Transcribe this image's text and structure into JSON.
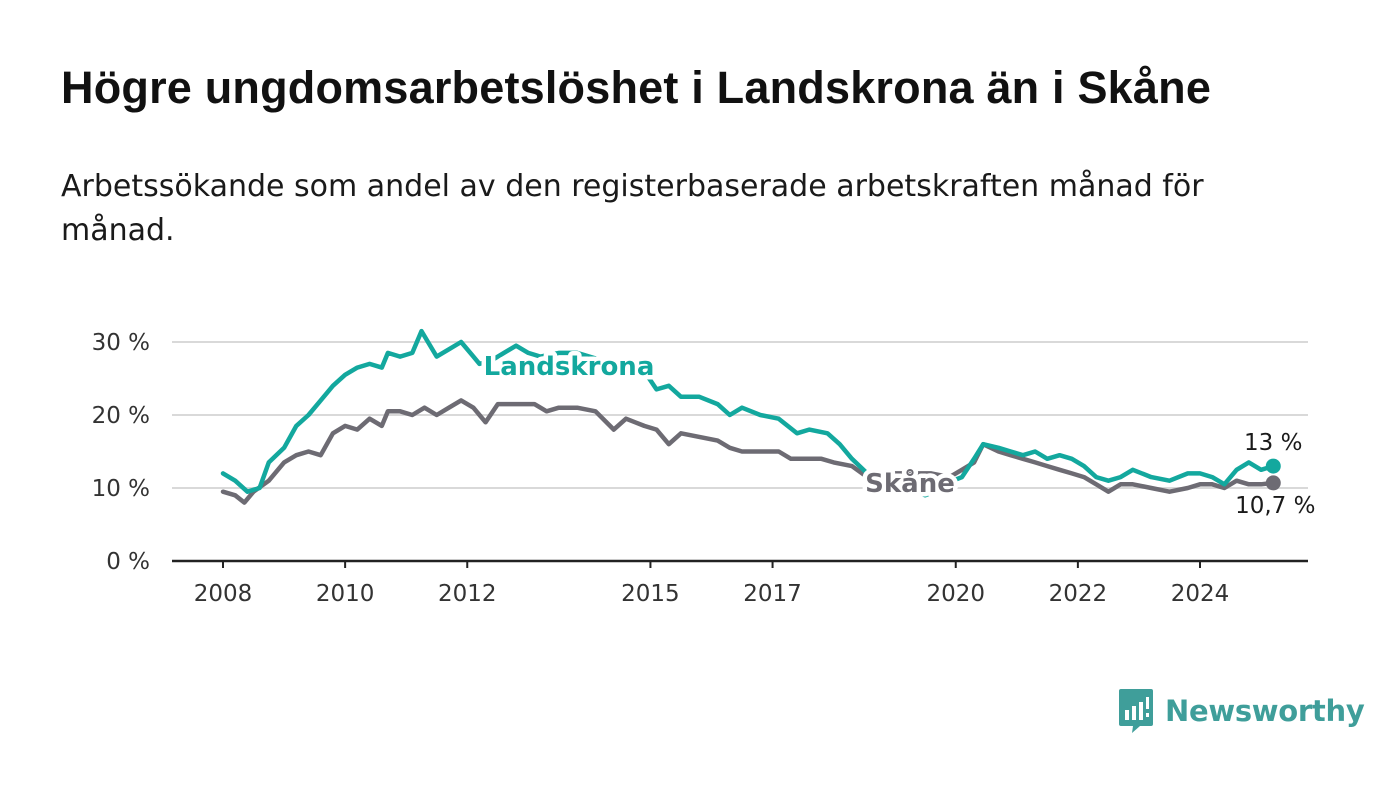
{
  "header": {
    "title": "Högre ungdomsarbetslöshet i Landskrona än i Skåne",
    "subtitle": "Arbetssökande som andel av den registerbaserade arbetskraften månad för månad."
  },
  "brand": {
    "name": "Newsworthy",
    "icon": "newsworthy-logo-icon",
    "color": "#3f9e9a"
  },
  "chart_data": {
    "type": "line",
    "x_unit": "year",
    "ylim": [
      0,
      30
    ],
    "xlim": [
      2007.5,
      2026.8
    ],
    "y_ticks": [
      0,
      10,
      20,
      30
    ],
    "y_tick_labels": [
      "0 %",
      "10 %",
      "20 %",
      "30 %"
    ],
    "x_ticks": [
      2008,
      2010,
      2012,
      2015,
      2017,
      2020,
      2022,
      2024
    ],
    "x_tick_labels": [
      "2008",
      "2010",
      "2012",
      "2015",
      "2017",
      "2020",
      "2022",
      "2024"
    ],
    "grid": true,
    "series": [
      {
        "name": "Landskrona",
        "color": "#13a89e",
        "end_label": "13 %",
        "points": [
          [
            2008.0,
            12.0
          ],
          [
            2008.2,
            11.0
          ],
          [
            2008.4,
            9.5
          ],
          [
            2008.6,
            10.0
          ],
          [
            2008.75,
            13.5
          ],
          [
            2009.0,
            15.5
          ],
          [
            2009.2,
            18.5
          ],
          [
            2009.4,
            20.0
          ],
          [
            2009.6,
            22.0
          ],
          [
            2009.8,
            24.0
          ],
          [
            2010.0,
            25.5
          ],
          [
            2010.2,
            26.5
          ],
          [
            2010.4,
            27.0
          ],
          [
            2010.6,
            26.5
          ],
          [
            2010.7,
            28.5
          ],
          [
            2010.9,
            28.0
          ],
          [
            2011.1,
            28.5
          ],
          [
            2011.25,
            31.5
          ],
          [
            2011.5,
            28.0
          ],
          [
            2011.7,
            29.0
          ],
          [
            2011.9,
            30.0
          ],
          [
            2012.1,
            28.0
          ],
          [
            2012.2,
            27.0
          ],
          [
            2012.4,
            27.5
          ],
          [
            2012.6,
            28.5
          ],
          [
            2012.8,
            29.5
          ],
          [
            2013.0,
            28.5
          ],
          [
            2013.2,
            28.0
          ],
          [
            2013.5,
            28.5
          ],
          [
            2013.8,
            28.5
          ],
          [
            2014.2,
            27.5
          ],
          [
            2014.6,
            26.5
          ],
          [
            2014.9,
            26.0
          ],
          [
            2015.1,
            23.5
          ],
          [
            2015.3,
            24.0
          ],
          [
            2015.5,
            22.5
          ],
          [
            2015.8,
            22.5
          ],
          [
            2016.1,
            21.5
          ],
          [
            2016.3,
            20.0
          ],
          [
            2016.5,
            21.0
          ],
          [
            2016.8,
            20.0
          ],
          [
            2017.1,
            19.5
          ],
          [
            2017.4,
            17.5
          ],
          [
            2017.6,
            18.0
          ],
          [
            2017.9,
            17.5
          ],
          [
            2018.1,
            16.0
          ],
          [
            2018.3,
            14.0
          ],
          [
            2018.55,
            12.0
          ],
          [
            2018.8,
            11.5
          ],
          [
            2019.0,
            11.0
          ],
          [
            2019.2,
            10.5
          ],
          [
            2019.35,
            9.5
          ],
          [
            2019.5,
            9.0
          ],
          [
            2019.65,
            9.5
          ],
          [
            2019.8,
            10.5
          ],
          [
            2020.1,
            11.5
          ],
          [
            2020.3,
            14.0
          ],
          [
            2020.45,
            16.0
          ],
          [
            2020.7,
            15.5
          ],
          [
            2020.9,
            15.0
          ],
          [
            2021.1,
            14.5
          ],
          [
            2021.3,
            15.0
          ],
          [
            2021.5,
            14.0
          ],
          [
            2021.7,
            14.5
          ],
          [
            2021.9,
            14.0
          ],
          [
            2022.1,
            13.0
          ],
          [
            2022.3,
            11.5
          ],
          [
            2022.5,
            11.0
          ],
          [
            2022.7,
            11.5
          ],
          [
            2022.9,
            12.5
          ],
          [
            2023.2,
            11.5
          ],
          [
            2023.5,
            11.0
          ],
          [
            2023.8,
            12.0
          ],
          [
            2024.0,
            12.0
          ],
          [
            2024.2,
            11.5
          ],
          [
            2024.4,
            10.5
          ],
          [
            2024.6,
            12.5
          ],
          [
            2024.8,
            13.5
          ],
          [
            2025.0,
            12.5
          ],
          [
            2025.2,
            13.0
          ]
        ]
      },
      {
        "name": "Skåne",
        "color": "#6d6b73",
        "end_label": "10,7 %",
        "points": [
          [
            2008.0,
            9.5
          ],
          [
            2008.2,
            9.0
          ],
          [
            2008.35,
            8.0
          ],
          [
            2008.5,
            9.5
          ],
          [
            2008.75,
            11.0
          ],
          [
            2009.0,
            13.5
          ],
          [
            2009.2,
            14.5
          ],
          [
            2009.4,
            15.0
          ],
          [
            2009.6,
            14.5
          ],
          [
            2009.8,
            17.5
          ],
          [
            2010.0,
            18.5
          ],
          [
            2010.2,
            18.0
          ],
          [
            2010.4,
            19.5
          ],
          [
            2010.6,
            18.5
          ],
          [
            2010.7,
            20.5
          ],
          [
            2010.9,
            20.5
          ],
          [
            2011.1,
            20.0
          ],
          [
            2011.3,
            21.0
          ],
          [
            2011.5,
            20.0
          ],
          [
            2011.7,
            21.0
          ],
          [
            2011.9,
            22.0
          ],
          [
            2012.1,
            21.0
          ],
          [
            2012.3,
            19.0
          ],
          [
            2012.5,
            21.5
          ],
          [
            2012.8,
            21.5
          ],
          [
            2013.1,
            21.5
          ],
          [
            2013.3,
            20.5
          ],
          [
            2013.5,
            21.0
          ],
          [
            2013.8,
            21.0
          ],
          [
            2014.1,
            20.5
          ],
          [
            2014.4,
            18.0
          ],
          [
            2014.6,
            19.5
          ],
          [
            2014.9,
            18.5
          ],
          [
            2015.1,
            18.0
          ],
          [
            2015.3,
            16.0
          ],
          [
            2015.5,
            17.5
          ],
          [
            2015.8,
            17.0
          ],
          [
            2016.1,
            16.5
          ],
          [
            2016.3,
            15.5
          ],
          [
            2016.5,
            15.0
          ],
          [
            2016.8,
            15.0
          ],
          [
            2017.1,
            15.0
          ],
          [
            2017.3,
            14.0
          ],
          [
            2017.5,
            14.0
          ],
          [
            2017.8,
            14.0
          ],
          [
            2018.0,
            13.5
          ],
          [
            2018.3,
            13.0
          ],
          [
            2018.55,
            11.5
          ],
          [
            2018.8,
            12.0
          ],
          [
            2019.0,
            12.0
          ],
          [
            2019.3,
            12.0
          ],
          [
            2019.6,
            12.0
          ],
          [
            2019.9,
            11.5
          ],
          [
            2020.1,
            12.5
          ],
          [
            2020.3,
            13.5
          ],
          [
            2020.45,
            16.0
          ],
          [
            2020.7,
            15.0
          ],
          [
            2020.9,
            14.5
          ],
          [
            2021.1,
            14.0
          ],
          [
            2021.3,
            13.5
          ],
          [
            2021.5,
            13.0
          ],
          [
            2021.7,
            12.5
          ],
          [
            2021.9,
            12.0
          ],
          [
            2022.1,
            11.5
          ],
          [
            2022.3,
            10.5
          ],
          [
            2022.5,
            9.5
          ],
          [
            2022.7,
            10.5
          ],
          [
            2022.9,
            10.5
          ],
          [
            2023.2,
            10.0
          ],
          [
            2023.5,
            9.5
          ],
          [
            2023.8,
            10.0
          ],
          [
            2024.0,
            10.5
          ],
          [
            2024.2,
            10.5
          ],
          [
            2024.4,
            10.0
          ],
          [
            2024.6,
            11.0
          ],
          [
            2024.8,
            10.5
          ],
          [
            2025.0,
            10.5
          ],
          [
            2025.2,
            10.7
          ]
        ]
      }
    ]
  }
}
